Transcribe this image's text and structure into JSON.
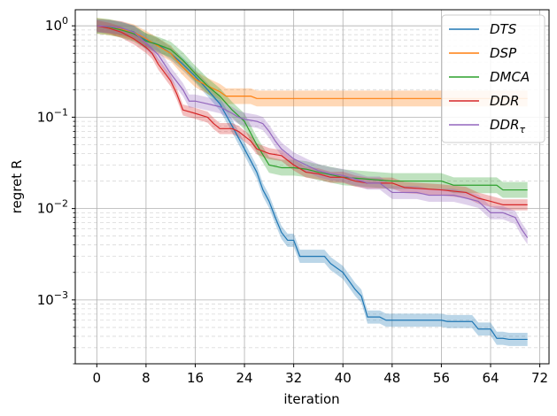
{
  "chart_data": {
    "type": "line",
    "xlabel": "iteration",
    "ylabel": "regret R",
    "x_ticks": [
      "0",
      "8",
      "16",
      "24",
      "32",
      "40",
      "48",
      "56",
      "64",
      "72"
    ],
    "y_ticks": [
      {
        "base": "10",
        "exp": "0"
      },
      {
        "base": "10",
        "exp": "−1"
      },
      {
        "base": "10",
        "exp": "−2"
      },
      {
        "base": "10",
        "exp": "−3"
      }
    ],
    "xlim": [
      -3.5,
      73.5
    ],
    "ylim": [
      0.0002,
      1.5
    ],
    "yscale": "log",
    "grid": true,
    "legend_position": "top-right",
    "series": [
      {
        "name": "DTS",
        "color": "#1f77b4",
        "band": 1.18,
        "points": [
          [
            0,
            1.0
          ],
          [
            2,
            0.98
          ],
          [
            4,
            0.93
          ],
          [
            6,
            0.86
          ],
          [
            8,
            0.7
          ],
          [
            10,
            0.62
          ],
          [
            12,
            0.5
          ],
          [
            14,
            0.38
          ],
          [
            16,
            0.28
          ],
          [
            18,
            0.2
          ],
          [
            20,
            0.14
          ],
          [
            22,
            0.08
          ],
          [
            24,
            0.045
          ],
          [
            26,
            0.025
          ],
          [
            27,
            0.016
          ],
          [
            28,
            0.012
          ],
          [
            29,
            0.008
          ],
          [
            30,
            0.0055
          ],
          [
            31,
            0.0045
          ],
          [
            32,
            0.0045
          ],
          [
            33,
            0.003
          ],
          [
            37,
            0.003
          ],
          [
            38,
            0.0025
          ],
          [
            40,
            0.002
          ],
          [
            42,
            0.0013
          ],
          [
            43,
            0.0011
          ],
          [
            44,
            0.00065
          ],
          [
            46,
            0.00065
          ],
          [
            47,
            0.0006
          ],
          [
            56,
            0.0006
          ],
          [
            57,
            0.00058
          ],
          [
            61,
            0.00058
          ],
          [
            62,
            0.00048
          ],
          [
            64,
            0.00048
          ],
          [
            65,
            0.00038
          ],
          [
            66,
            0.00038
          ],
          [
            67,
            0.00037
          ],
          [
            70,
            0.00037
          ]
        ]
      },
      {
        "name": "DSP",
        "color": "#ff7f0e",
        "band": 1.22,
        "points": [
          [
            0,
            1.0
          ],
          [
            2,
            0.96
          ],
          [
            4,
            0.92
          ],
          [
            6,
            0.85
          ],
          [
            8,
            0.72
          ],
          [
            10,
            0.6
          ],
          [
            12,
            0.5
          ],
          [
            14,
            0.35
          ],
          [
            16,
            0.26
          ],
          [
            18,
            0.22
          ],
          [
            20,
            0.19
          ],
          [
            21,
            0.17
          ],
          [
            25,
            0.17
          ],
          [
            26,
            0.16
          ],
          [
            70,
            0.16
          ]
        ]
      },
      {
        "name": "DMCA",
        "color": "#2ca02c",
        "band": 1.22,
        "points": [
          [
            0,
            1.0
          ],
          [
            2,
            0.97
          ],
          [
            4,
            0.9
          ],
          [
            6,
            0.82
          ],
          [
            8,
            0.68
          ],
          [
            10,
            0.62
          ],
          [
            12,
            0.55
          ],
          [
            14,
            0.42
          ],
          [
            16,
            0.3
          ],
          [
            18,
            0.22
          ],
          [
            20,
            0.17
          ],
          [
            22,
            0.12
          ],
          [
            24,
            0.09
          ],
          [
            26,
            0.05
          ],
          [
            28,
            0.03
          ],
          [
            30,
            0.028
          ],
          [
            32,
            0.028
          ],
          [
            34,
            0.027
          ],
          [
            36,
            0.025
          ],
          [
            40,
            0.022
          ],
          [
            44,
            0.021
          ],
          [
            48,
            0.02
          ],
          [
            56,
            0.02
          ],
          [
            58,
            0.018
          ],
          [
            65,
            0.018
          ],
          [
            66,
            0.016
          ],
          [
            70,
            0.016
          ]
        ]
      },
      {
        "name": "DDR",
        "color": "#d62728",
        "band": 1.15,
        "points": [
          [
            0,
            1.0
          ],
          [
            2,
            0.94
          ],
          [
            4,
            0.85
          ],
          [
            6,
            0.72
          ],
          [
            8,
            0.58
          ],
          [
            9,
            0.5
          ],
          [
            10,
            0.38
          ],
          [
            12,
            0.25
          ],
          [
            13,
            0.18
          ],
          [
            14,
            0.12
          ],
          [
            16,
            0.11
          ],
          [
            18,
            0.1
          ],
          [
            19,
            0.085
          ],
          [
            20,
            0.075
          ],
          [
            22,
            0.075
          ],
          [
            23,
            0.07
          ],
          [
            25,
            0.055
          ],
          [
            26,
            0.045
          ],
          [
            28,
            0.04
          ],
          [
            30,
            0.038
          ],
          [
            32,
            0.03
          ],
          [
            34,
            0.025
          ],
          [
            36,
            0.024
          ],
          [
            38,
            0.022
          ],
          [
            40,
            0.022
          ],
          [
            42,
            0.02
          ],
          [
            44,
            0.019
          ],
          [
            48,
            0.019
          ],
          [
            50,
            0.017
          ],
          [
            56,
            0.016
          ],
          [
            60,
            0.015
          ],
          [
            62,
            0.013
          ],
          [
            64,
            0.012
          ],
          [
            66,
            0.011
          ],
          [
            68,
            0.011
          ],
          [
            70,
            0.011
          ]
        ]
      },
      {
        "name": "DDR",
        "name_sub": "τ",
        "color": "#9467bd",
        "band": 1.18,
        "points": [
          [
            0,
            1.0
          ],
          [
            2,
            0.98
          ],
          [
            4,
            0.95
          ],
          [
            6,
            0.85
          ],
          [
            8,
            0.65
          ],
          [
            10,
            0.48
          ],
          [
            11,
            0.38
          ],
          [
            12,
            0.3
          ],
          [
            14,
            0.2
          ],
          [
            15,
            0.15
          ],
          [
            16,
            0.15
          ],
          [
            18,
            0.14
          ],
          [
            20,
            0.13
          ],
          [
            22,
            0.11
          ],
          [
            23,
            0.1
          ],
          [
            24,
            0.095
          ],
          [
            26,
            0.09
          ],
          [
            27,
            0.085
          ],
          [
            28,
            0.07
          ],
          [
            29,
            0.055
          ],
          [
            30,
            0.045
          ],
          [
            32,
            0.035
          ],
          [
            34,
            0.03
          ],
          [
            36,
            0.026
          ],
          [
            38,
            0.024
          ],
          [
            40,
            0.023
          ],
          [
            42,
            0.021
          ],
          [
            44,
            0.019
          ],
          [
            46,
            0.019
          ],
          [
            48,
            0.015
          ],
          [
            50,
            0.015
          ],
          [
            52,
            0.015
          ],
          [
            54,
            0.014
          ],
          [
            56,
            0.014
          ],
          [
            58,
            0.014
          ],
          [
            60,
            0.013
          ],
          [
            62,
            0.012
          ],
          [
            64,
            0.009
          ],
          [
            66,
            0.009
          ],
          [
            68,
            0.008
          ],
          [
            69,
            0.006
          ],
          [
            70,
            0.0048
          ]
        ]
      }
    ]
  }
}
